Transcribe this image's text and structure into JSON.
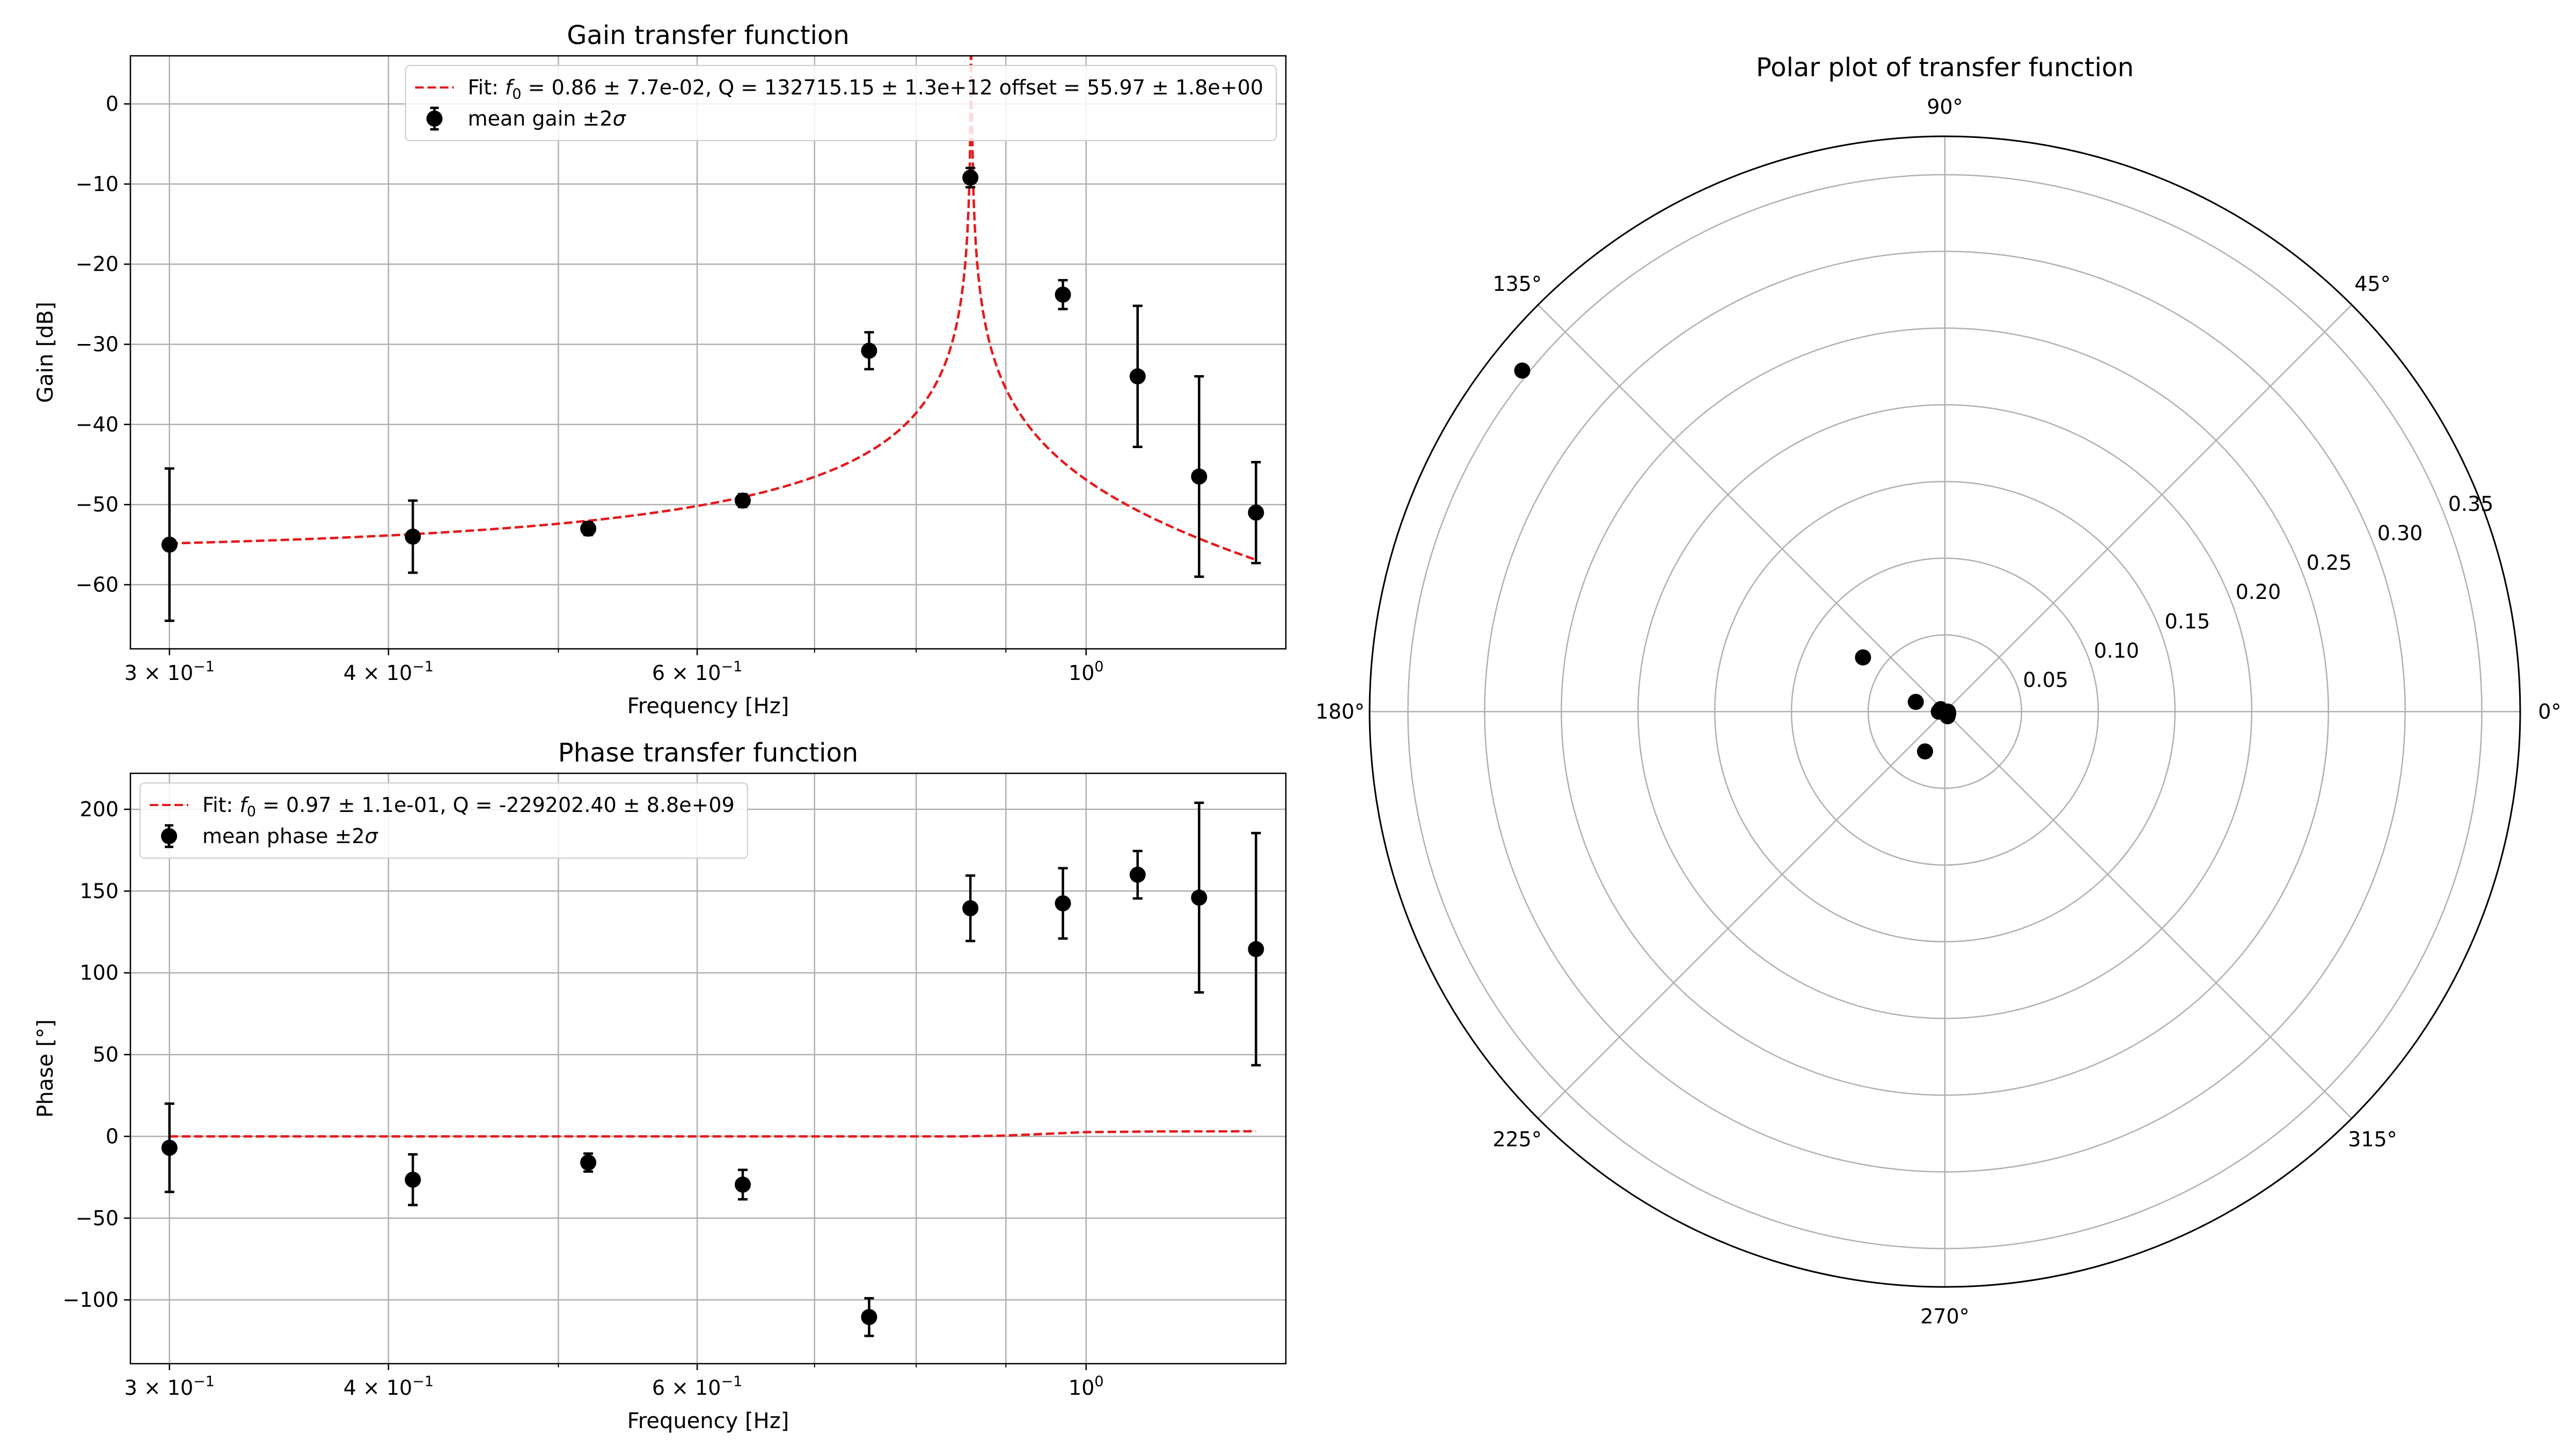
{
  "colors": {
    "fit": "#e41a1c",
    "data": "#000000",
    "grid": "#b0b0b0",
    "frame": "#000000"
  },
  "chart_data": [
    {
      "id": "gain",
      "type": "scatter",
      "title": "Gain transfer function",
      "xlabel": "Frequency [Hz]",
      "ylabel": "Gain [dB]",
      "xscale": "log",
      "xlim": [
        0.285,
        1.3
      ],
      "ylim": [
        -68,
        6
      ],
      "grid": true,
      "legend_position": "top-right",
      "xticks_major": [
        {
          "v": 0.3,
          "base": "3 × 10",
          "exp": "−1"
        },
        {
          "v": 0.4,
          "base": "4 × 10",
          "exp": "−1"
        },
        {
          "v": 0.6,
          "base": "6 × 10",
          "exp": "−1"
        },
        {
          "v": 1.0,
          "base": "10",
          "exp": "0"
        }
      ],
      "xticks_minor": [
        0.5,
        0.7,
        0.8,
        0.9
      ],
      "yticks": [
        {
          "v": 0,
          "label": "0"
        },
        {
          "v": -10,
          "label": "−10"
        },
        {
          "v": -20,
          "label": "−20"
        },
        {
          "v": -30,
          "label": "−30"
        },
        {
          "v": -40,
          "label": "−40"
        },
        {
          "v": -50,
          "label": "−50"
        },
        {
          "v": -60,
          "label": "−60"
        }
      ],
      "fit_legend": {
        "pre": "Fit: ",
        "sym": "f",
        "sub": "0",
        "post": " = 0.86 ± 7.7e-02, Q = 132715.15 ± 1.3e+12 offset = 55.97 ± 1.8e+00"
      },
      "data_legend": {
        "pre": "mean gain ±2",
        "sym": "σ"
      },
      "fit_model": {
        "f0": 0.86,
        "Q": 132715.15,
        "offset_db": -55.97
      },
      "data": [
        {
          "x": 0.3,
          "y": -55.0,
          "err": 9.5
        },
        {
          "x": 0.413,
          "y": -54.0,
          "err": 4.5
        },
        {
          "x": 0.52,
          "y": -53.0,
          "err": 0.8
        },
        {
          "x": 0.637,
          "y": -49.5,
          "err": 0.8
        },
        {
          "x": 0.752,
          "y": -30.8,
          "err": 2.3
        },
        {
          "x": 0.859,
          "y": -9.2,
          "err": 1.2
        },
        {
          "x": 0.97,
          "y": -23.8,
          "err": 1.8
        },
        {
          "x": 1.07,
          "y": -34.0,
          "err": 8.8
        },
        {
          "x": 1.16,
          "y": -46.5,
          "err": 12.5
        },
        {
          "x": 1.25,
          "y": -51.0,
          "err": 6.3
        }
      ]
    },
    {
      "id": "phase",
      "type": "scatter",
      "title": "Phase transfer function",
      "xlabel": "Frequency [Hz]",
      "ylabel": "Phase [°]",
      "xscale": "log",
      "xlim": [
        0.285,
        1.3
      ],
      "ylim": [
        -139,
        222
      ],
      "grid": true,
      "legend_position": "top-left",
      "xticks_major": [
        {
          "v": 0.3,
          "base": "3 × 10",
          "exp": "−1"
        },
        {
          "v": 0.4,
          "base": "4 × 10",
          "exp": "−1"
        },
        {
          "v": 0.6,
          "base": "6 × 10",
          "exp": "−1"
        },
        {
          "v": 1.0,
          "base": "10",
          "exp": "0"
        }
      ],
      "xticks_minor": [
        0.5,
        0.7,
        0.8,
        0.9
      ],
      "yticks": [
        {
          "v": 200,
          "label": "200"
        },
        {
          "v": 150,
          "label": "150"
        },
        {
          "v": 100,
          "label": "100"
        },
        {
          "v": 50,
          "label": "50"
        },
        {
          "v": 0,
          "label": "0"
        },
        {
          "v": -50,
          "label": "−50"
        },
        {
          "v": -100,
          "label": "−100"
        }
      ],
      "fit_legend": {
        "pre": "Fit: ",
        "sym": "f",
        "sub": "0",
        "post": " = 0.97 ± 1.1e-01, Q = -229202.40 ± 8.8e+09"
      },
      "data_legend": {
        "pre": "mean phase ±2",
        "sym": "σ"
      },
      "fit_line": [
        [
          0.3,
          0.0
        ],
        [
          0.85,
          0.0
        ],
        [
          0.9,
          0.5
        ],
        [
          1.0,
          2.6
        ],
        [
          1.1,
          3.0
        ],
        [
          1.25,
          3.1
        ]
      ],
      "data": [
        {
          "x": 0.3,
          "y": -7.0,
          "err": 27.0
        },
        {
          "x": 0.413,
          "y": -26.5,
          "err": 15.5
        },
        {
          "x": 0.52,
          "y": -16.0,
          "err": 5.5
        },
        {
          "x": 0.637,
          "y": -29.5,
          "err": 9.0
        },
        {
          "x": 0.752,
          "y": -110.5,
          "err": 11.5
        },
        {
          "x": 0.859,
          "y": 139.5,
          "err": 20.0
        },
        {
          "x": 0.97,
          "y": 142.5,
          "err": 21.5
        },
        {
          "x": 1.07,
          "y": 160.0,
          "err": 14.5
        },
        {
          "x": 1.16,
          "y": 146.0,
          "err": 58.0
        },
        {
          "x": 1.25,
          "y": 114.5,
          "err": 71.0
        }
      ]
    },
    {
      "id": "polar",
      "type": "scatter",
      "projection": "polar",
      "title": "Polar plot of transfer function",
      "rlim": [
        0,
        0.375
      ],
      "rticks": [
        {
          "v": 0.05,
          "label": "0.05"
        },
        {
          "v": 0.1,
          "label": "0.10"
        },
        {
          "v": 0.15,
          "label": "0.15"
        },
        {
          "v": 0.2,
          "label": "0.20"
        },
        {
          "v": 0.25,
          "label": "0.25"
        },
        {
          "v": 0.3,
          "label": "0.30"
        },
        {
          "v": 0.35,
          "label": "0.35"
        }
      ],
      "theta_ticks": [
        {
          "deg": 0,
          "label": "0°"
        },
        {
          "deg": 45,
          "label": "45°"
        },
        {
          "deg": 90,
          "label": "90°"
        },
        {
          "deg": 135,
          "label": "135°"
        },
        {
          "deg": 180,
          "label": "180°"
        },
        {
          "deg": 225,
          "label": "225°"
        },
        {
          "deg": 270,
          "label": "270°"
        },
        {
          "deg": 315,
          "label": "315°"
        }
      ],
      "points": [
        {
          "theta": 141.1,
          "r": 0.354
        },
        {
          "theta": 146.5,
          "r": 0.064
        },
        {
          "theta": 161.5,
          "r": 0.02
        },
        {
          "theta": 243.5,
          "r": 0.029
        },
        {
          "theta": 150.0,
          "r": 0.0032
        },
        {
          "theta": 180.0,
          "r": 0.004
        },
        {
          "theta": 300.0,
          "r": 0.0035
        },
        {
          "theta": 330.0,
          "r": 0.0025
        },
        {
          "theta": 340.0,
          "r": 0.0018
        },
        {
          "theta": 0.0,
          "r": 0.002
        }
      ]
    }
  ]
}
